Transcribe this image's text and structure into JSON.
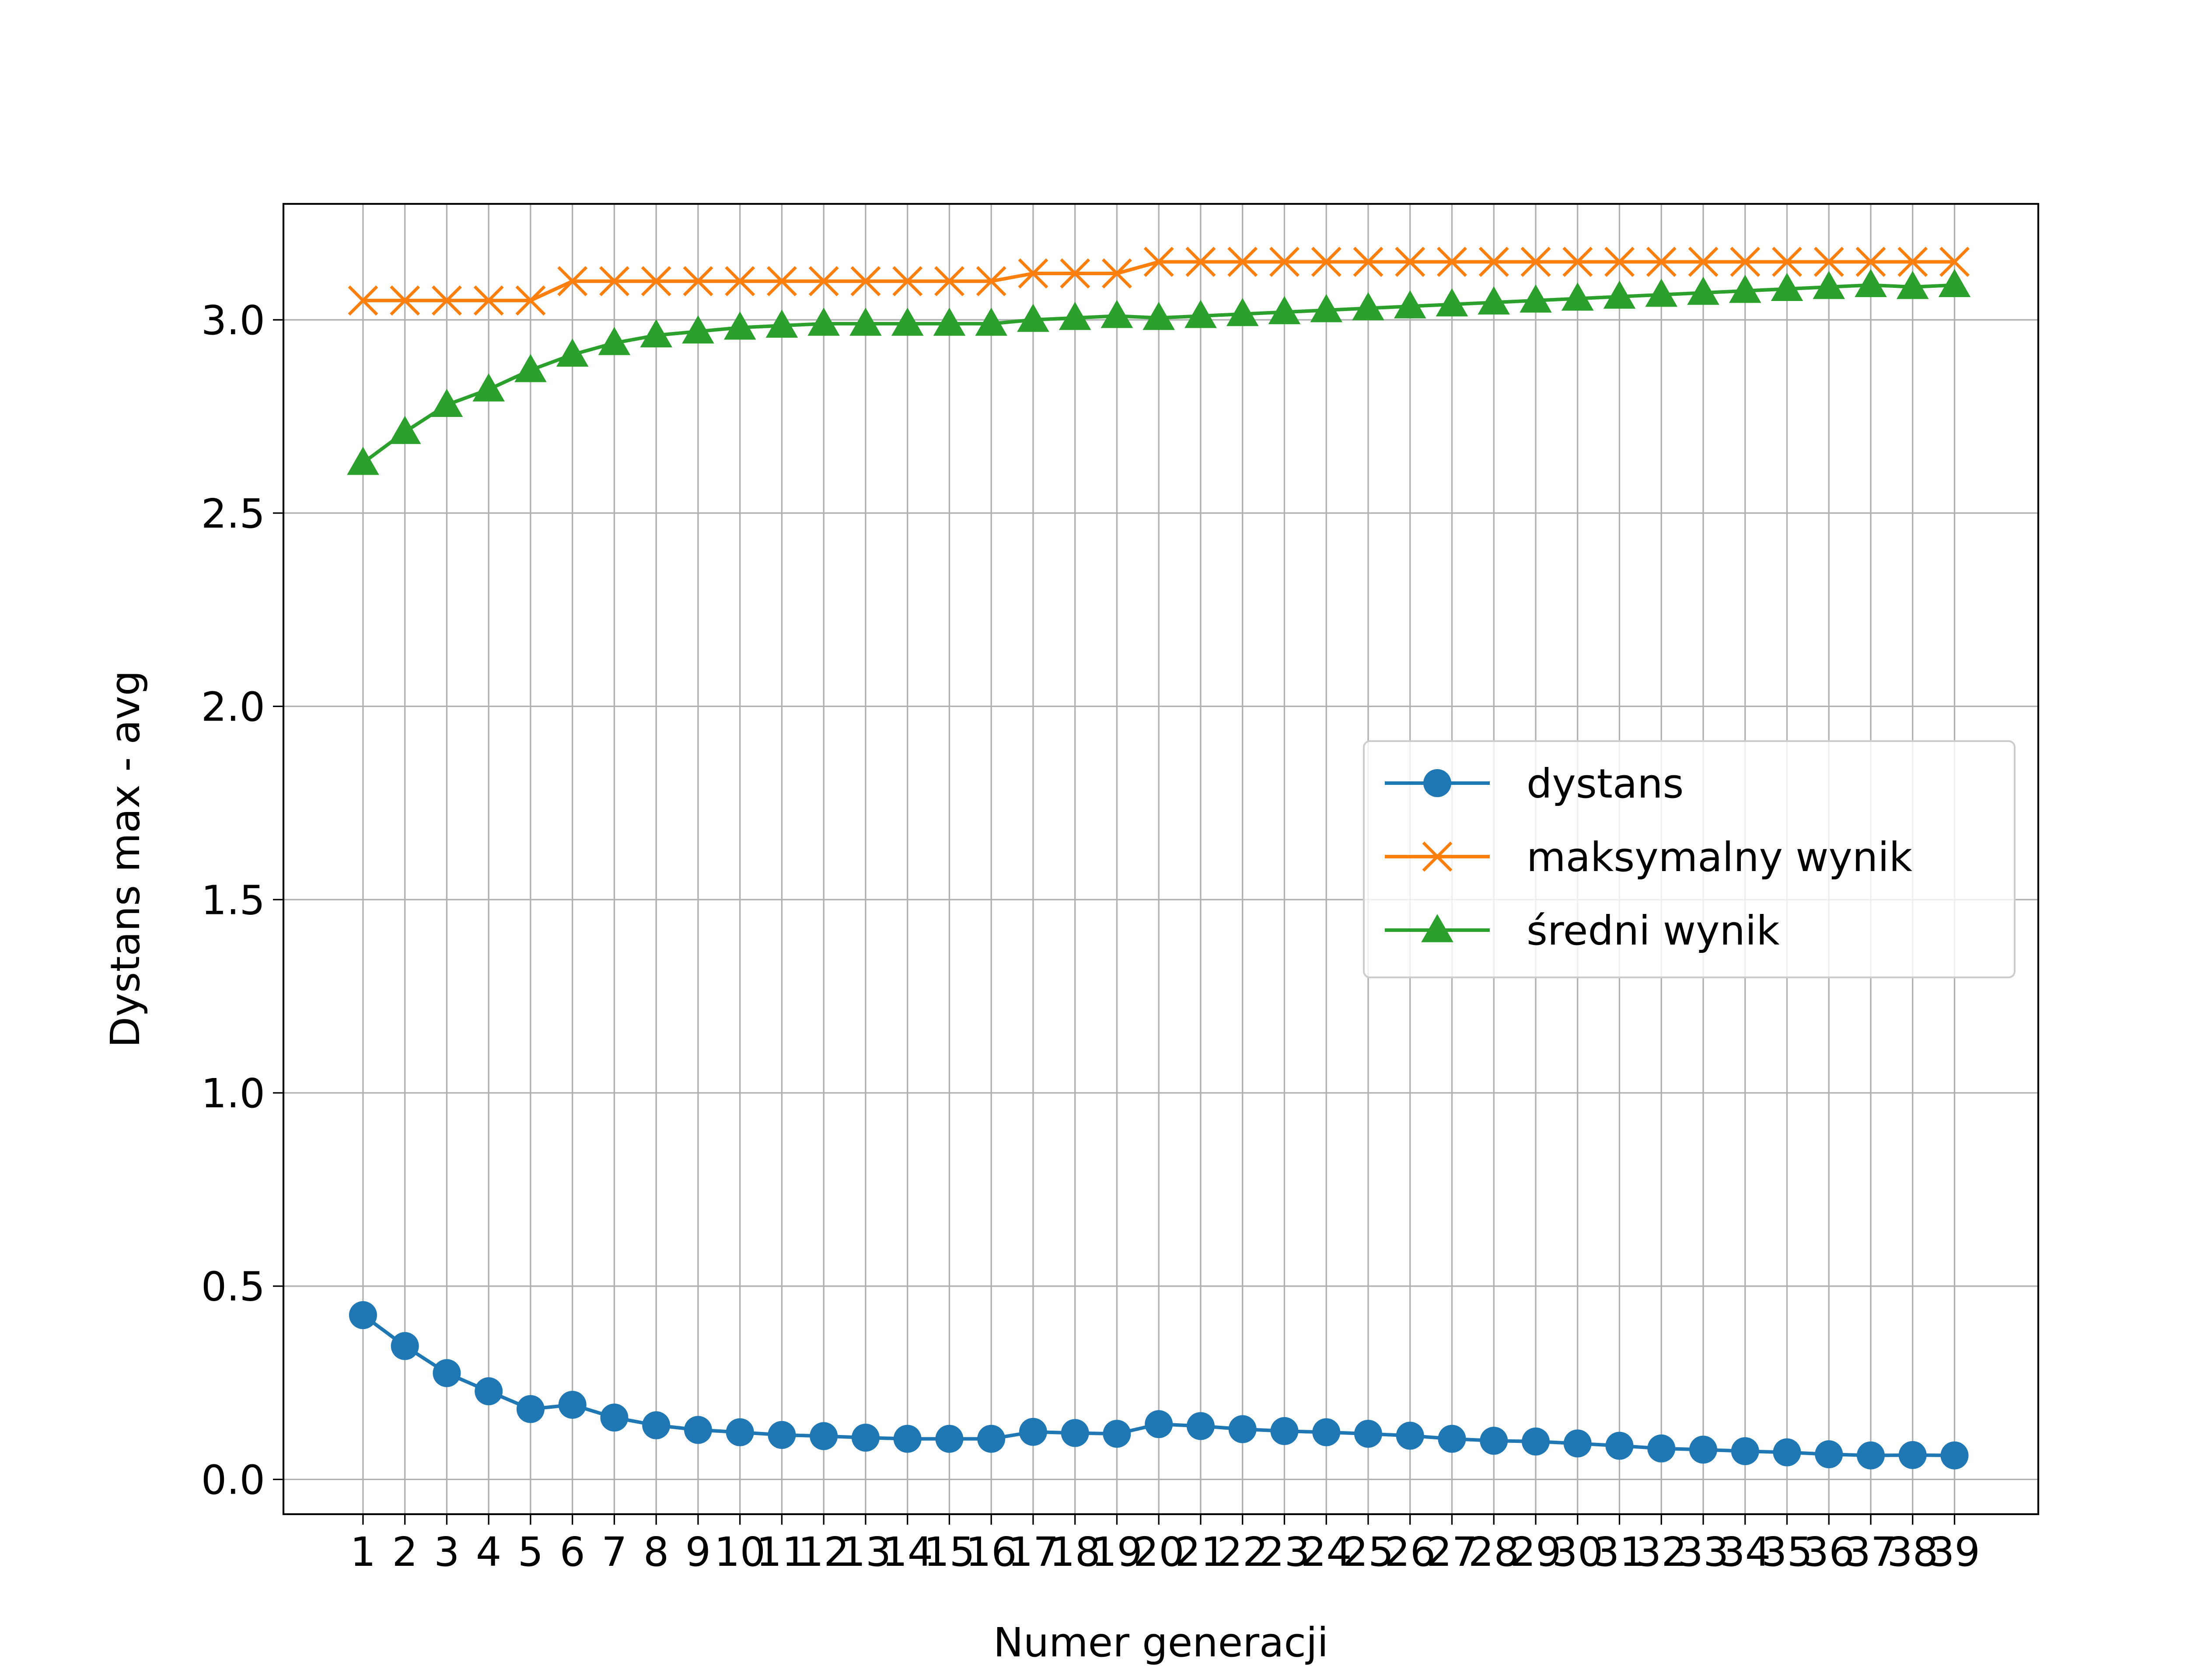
{
  "chart_data": {
    "type": "line",
    "xlabel": "Numer generacji",
    "ylabel": "Dystans max - avg",
    "x": [
      1,
      2,
      3,
      4,
      5,
      6,
      7,
      8,
      9,
      10,
      11,
      12,
      13,
      14,
      15,
      16,
      17,
      18,
      19,
      20,
      21,
      22,
      23,
      24,
      25,
      26,
      27,
      28,
      29,
      30,
      31,
      32,
      33,
      34,
      35,
      36,
      37,
      38,
      39
    ],
    "x_ticks": [
      "1",
      "2",
      "3",
      "4",
      "5",
      "6",
      "7",
      "8",
      "9",
      "10",
      "11",
      "12",
      "13",
      "14",
      "15",
      "16",
      "17",
      "18",
      "19",
      "20",
      "21",
      "22",
      "23",
      "24",
      "25",
      "26",
      "27",
      "28",
      "29",
      "30",
      "31",
      "32",
      "33",
      "34",
      "35",
      "36",
      "37",
      "38",
      "39"
    ],
    "y_ticks": [
      "0.0",
      "0.5",
      "1.0",
      "1.5",
      "2.0",
      "2.5",
      "3.0"
    ],
    "ylim": [
      -0.09,
      3.3
    ],
    "xlim": [
      -0.9,
      41.0
    ],
    "grid": true,
    "legend_position": "center-right",
    "series": [
      {
        "name": "dystans",
        "color": "#1f77b4",
        "marker": "circle",
        "values": [
          0.425,
          0.345,
          0.275,
          0.228,
          0.182,
          0.193,
          0.16,
          0.14,
          0.128,
          0.122,
          0.115,
          0.112,
          0.108,
          0.105,
          0.105,
          0.105,
          0.123,
          0.12,
          0.118,
          0.143,
          0.138,
          0.13,
          0.125,
          0.122,
          0.118,
          0.113,
          0.105,
          0.1,
          0.098,
          0.093,
          0.087,
          0.08,
          0.077,
          0.073,
          0.07,
          0.065,
          0.062,
          0.063,
          0.062
        ]
      },
      {
        "name": "maksymalny wynik",
        "color": "#ff7f0e",
        "marker": "x",
        "values": [
          3.05,
          3.05,
          3.05,
          3.05,
          3.05,
          3.1,
          3.1,
          3.1,
          3.1,
          3.1,
          3.1,
          3.1,
          3.1,
          3.1,
          3.1,
          3.1,
          3.12,
          3.12,
          3.12,
          3.15,
          3.15,
          3.15,
          3.15,
          3.15,
          3.15,
          3.15,
          3.15,
          3.15,
          3.15,
          3.15,
          3.15,
          3.15,
          3.15,
          3.15,
          3.15,
          3.15,
          3.15,
          3.15,
          3.15
        ]
      },
      {
        "name": "średni wynik",
        "color": "#2ca02c",
        "marker": "triangle",
        "values": [
          2.63,
          2.71,
          2.78,
          2.82,
          2.87,
          2.91,
          2.94,
          2.96,
          2.97,
          2.98,
          2.985,
          2.99,
          2.99,
          2.99,
          2.99,
          2.99,
          3.0,
          3.005,
          3.01,
          3.005,
          3.01,
          3.015,
          3.02,
          3.025,
          3.03,
          3.035,
          3.04,
          3.045,
          3.05,
          3.055,
          3.06,
          3.065,
          3.07,
          3.075,
          3.08,
          3.085,
          3.09,
          3.085,
          3.09
        ]
      }
    ]
  }
}
